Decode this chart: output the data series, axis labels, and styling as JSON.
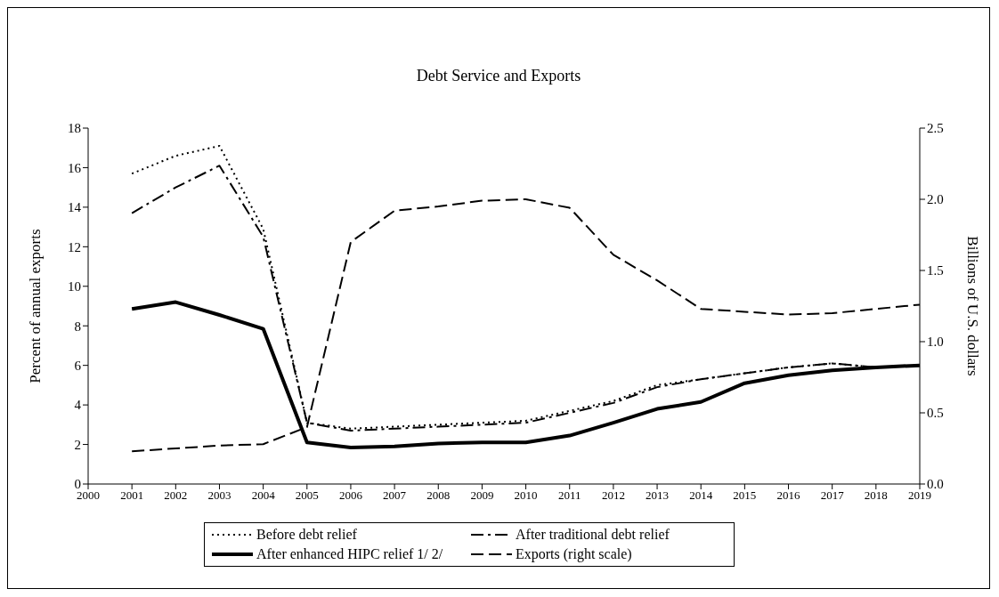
{
  "chart_data": {
    "type": "line",
    "title": "Debt Service and Exports",
    "ylabel": "Percent of annual exports",
    "y2label": "Billions of U.S. dollars",
    "categories": [
      "2000",
      "2001",
      "2002",
      "2003",
      "2004",
      "2005",
      "2006",
      "2007",
      "2008",
      "2009",
      "2010",
      "2011",
      "2012",
      "2013",
      "2014",
      "2015",
      "2016",
      "2017",
      "2018",
      "2019"
    ],
    "series": [
      {
        "name": "Before debt relief",
        "color": "#000000",
        "line_style": "dotted",
        "values": [
          null,
          15.7,
          16.6,
          17.1,
          12.9,
          3.1,
          2.8,
          2.9,
          3.0,
          3.1,
          3.2,
          3.7,
          4.2,
          5.0,
          5.3,
          5.6,
          5.9,
          6.1,
          5.9,
          6.0
        ]
      },
      {
        "name": "After traditional debt relief",
        "color": "#000000",
        "line_style": "dashdot",
        "values": [
          null,
          13.7,
          15.0,
          16.1,
          12.5,
          3.1,
          2.7,
          2.8,
          2.9,
          3.0,
          3.1,
          3.6,
          4.1,
          4.9,
          5.3,
          5.6,
          5.9,
          6.1,
          5.9,
          6.0
        ]
      },
      {
        "name": "After enhanced HIPC relief 1/ 2/",
        "color": "#000000",
        "line_style": "solid",
        "values": [
          null,
          8.85,
          9.2,
          8.55,
          7.85,
          2.1,
          1.85,
          1.9,
          2.05,
          2.1,
          2.1,
          2.45,
          3.1,
          3.8,
          4.15,
          5.1,
          5.5,
          5.75,
          5.9,
          6.0
        ]
      },
      {
        "name": "Exports (right scale)",
        "color": "#000000",
        "line_style": "dashed",
        "axis": "y2",
        "values": [
          null,
          0.23,
          0.25,
          0.27,
          0.28,
          0.4,
          1.7,
          1.92,
          1.95,
          1.99,
          2.0,
          1.94,
          1.61,
          1.43,
          1.23,
          1.21,
          1.19,
          1.2,
          1.23,
          1.26
        ]
      }
    ],
    "ylim": [
      0,
      18
    ],
    "yticks": [
      0,
      2,
      4,
      6,
      8,
      10,
      12,
      14,
      16,
      18
    ],
    "y2lim": [
      0,
      2.5
    ],
    "y2ticks": [
      {
        "value": 0,
        "label": "0.0"
      },
      {
        "value": 0.5,
        "label": "0.5"
      },
      {
        "value": 1,
        "label": "1.0"
      },
      {
        "value": 1.5,
        "label": "1.5"
      },
      {
        "value": 2,
        "label": "2.0"
      },
      {
        "value": 2.5,
        "label": "2.5"
      }
    ],
    "grid": false,
    "legend": "bottom",
    "marker": "none"
  }
}
